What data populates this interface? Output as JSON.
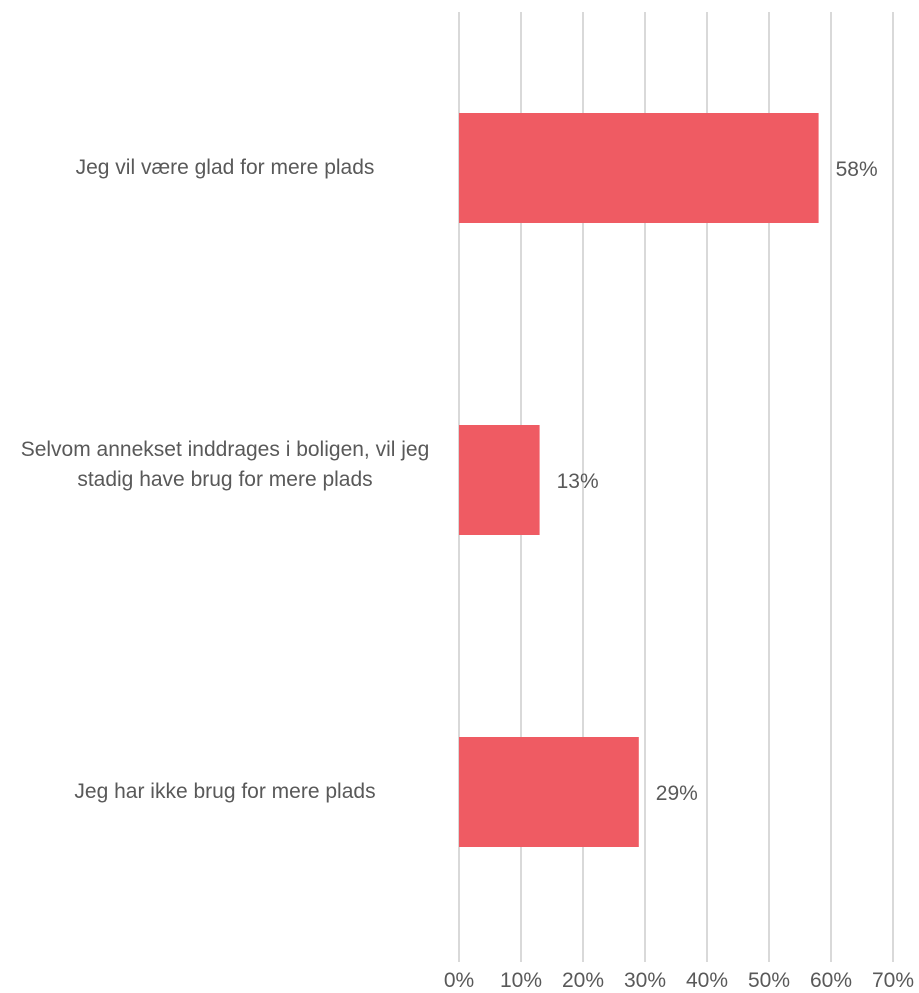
{
  "chart_data": {
    "type": "bar",
    "orientation": "horizontal",
    "categories": [
      "Jeg vil være glad for mere plads",
      "Selvom annekset inddrages i boligen, vil jeg stadig have brug for mere plads",
      "Jeg har ikke brug for mere plads"
    ],
    "values": [
      58,
      13,
      29
    ],
    "data_labels": [
      "58%",
      "13%",
      "29%"
    ],
    "x_ticks": [
      "0%",
      "10%",
      "20%",
      "30%",
      "40%",
      "50%",
      "60%",
      "70%"
    ],
    "xlim": [
      0,
      70
    ],
    "grid": "vertical",
    "legend": "none",
    "bar_color": "#EF5B63",
    "grid_color": "#D9D9D9",
    "text_color": "#595959"
  }
}
